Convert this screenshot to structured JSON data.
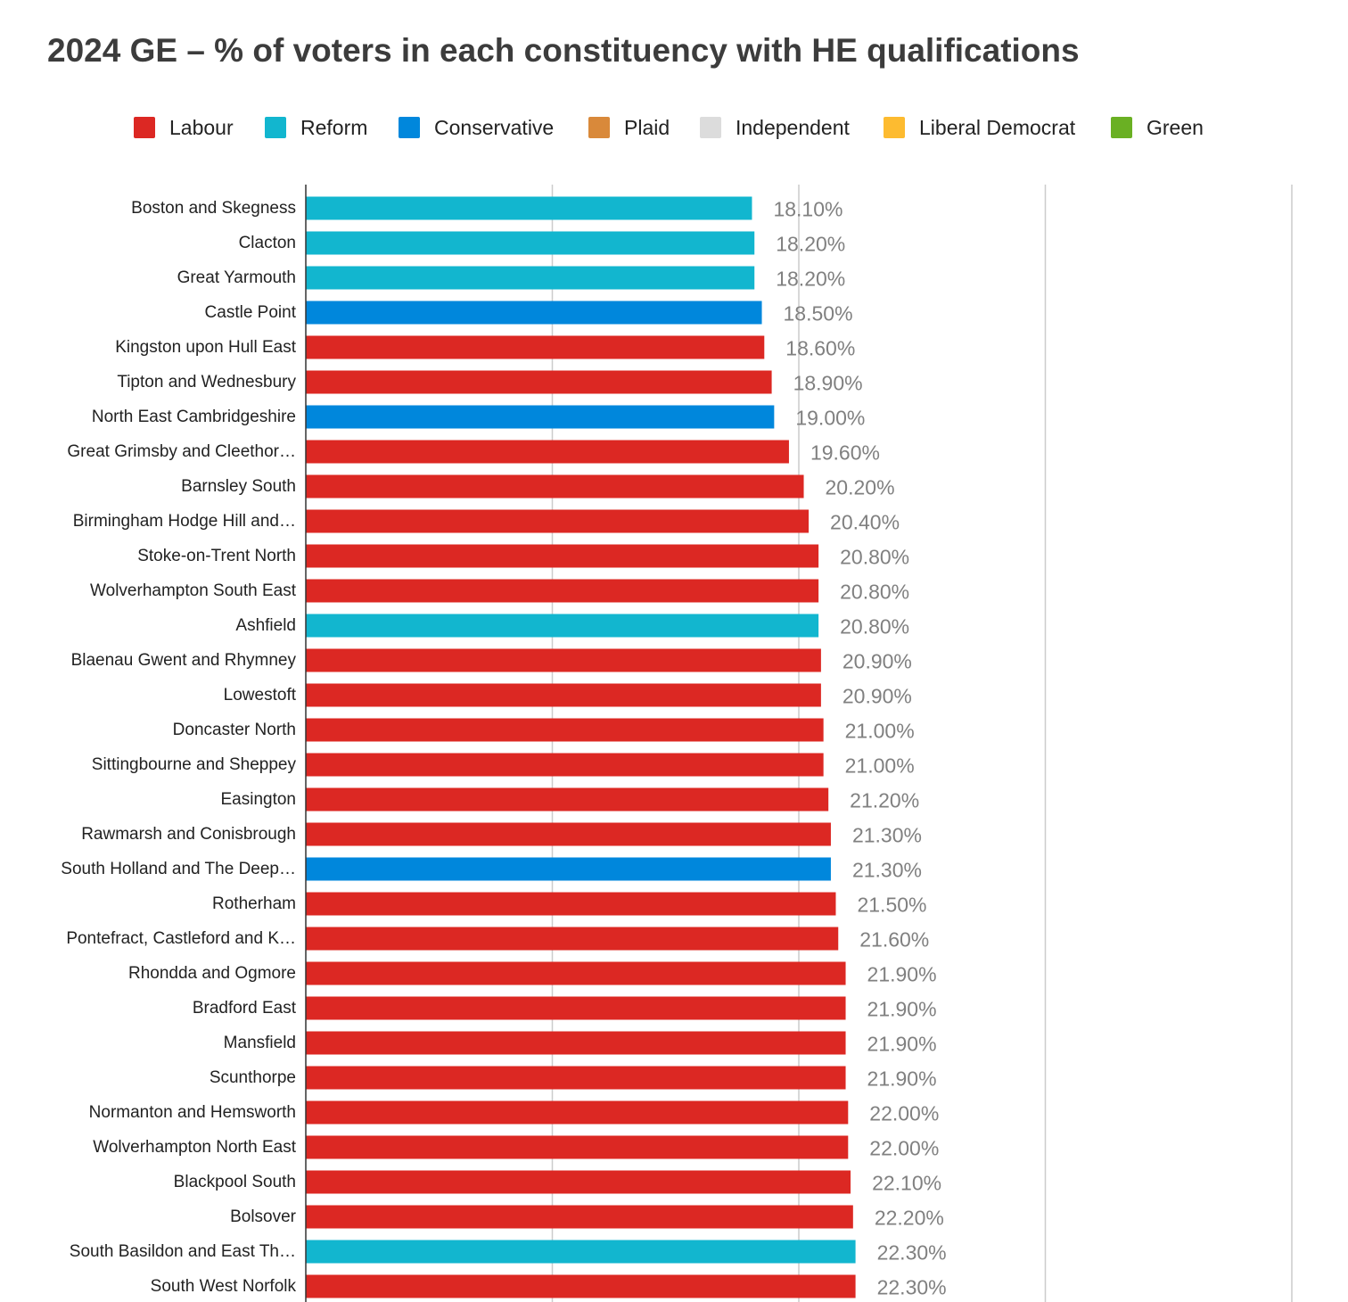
{
  "chart_data": {
    "type": "bar",
    "orientation": "horizontal",
    "title": "2024 GE – % of voters in each constituency with HE qualifications",
    "xlabel": "",
    "ylabel": "",
    "xlim": [
      0,
      40
    ],
    "grid": true,
    "legend_position": "top-center",
    "legend": [
      {
        "name": "Labour",
        "color": "#dc2823"
      },
      {
        "name": "Reform",
        "color": "#12b6cf"
      },
      {
        "name": "Conservative",
        "color": "#0087dc"
      },
      {
        "name": "Plaid",
        "color": "#d9893a"
      },
      {
        "name": "Independent",
        "color": "#dcdcdc"
      },
      {
        "name": "Liberal Democrat",
        "color": "#fdbb30"
      },
      {
        "name": "Green",
        "color": "#6ab023"
      }
    ],
    "categories": [
      "Boston and Skegness",
      "Clacton",
      "Great Yarmouth",
      "Castle Point",
      "Kingston upon Hull East",
      "Tipton and Wednesbury",
      "North East Cambridgeshire",
      "Great Grimsby and Cleethor…",
      "Barnsley South",
      "Birmingham Hodge Hill and…",
      "Stoke-on-Trent North",
      "Wolverhampton South East",
      "Ashfield",
      "Blaenau Gwent and Rhymney",
      "Lowestoft",
      "Doncaster North",
      "Sittingbourne and Sheppey",
      "Easington",
      "Rawmarsh and Conisbrough",
      "South Holland and The Deep…",
      "Rotherham",
      "Pontefract, Castleford and K…",
      "Rhondda and Ogmore",
      "Bradford East",
      "Mansfield",
      "Scunthorpe",
      "Normanton and Hemsworth",
      "Wolverhampton North East",
      "Blackpool South",
      "Bolsover",
      "South Basildon and East Th…",
      "South West Norfolk"
    ],
    "values": [
      18.1,
      18.2,
      18.2,
      18.5,
      18.6,
      18.9,
      19.0,
      19.6,
      20.2,
      20.4,
      20.8,
      20.8,
      20.8,
      20.9,
      20.9,
      21.0,
      21.0,
      21.2,
      21.3,
      21.3,
      21.5,
      21.6,
      21.9,
      21.9,
      21.9,
      21.9,
      22.0,
      22.0,
      22.1,
      22.2,
      22.3,
      22.3
    ],
    "value_labels": [
      "18.10%",
      "18.20%",
      "18.20%",
      "18.50%",
      "18.60%",
      "18.90%",
      "19.00%",
      "19.60%",
      "20.20%",
      "20.40%",
      "20.80%",
      "20.80%",
      "20.80%",
      "20.90%",
      "20.90%",
      "21.00%",
      "21.00%",
      "21.20%",
      "21.30%",
      "21.30%",
      "21.50%",
      "21.60%",
      "21.90%",
      "21.90%",
      "21.90%",
      "21.90%",
      "22.00%",
      "22.00%",
      "22.10%",
      "22.20%",
      "22.30%",
      "22.30%"
    ],
    "parties": [
      "Reform",
      "Reform",
      "Reform",
      "Conservative",
      "Labour",
      "Labour",
      "Conservative",
      "Labour",
      "Labour",
      "Labour",
      "Labour",
      "Labour",
      "Reform",
      "Labour",
      "Labour",
      "Labour",
      "Labour",
      "Labour",
      "Labour",
      "Conservative",
      "Labour",
      "Labour",
      "Labour",
      "Labour",
      "Labour",
      "Labour",
      "Labour",
      "Labour",
      "Labour",
      "Labour",
      "Reform",
      "Labour"
    ]
  }
}
